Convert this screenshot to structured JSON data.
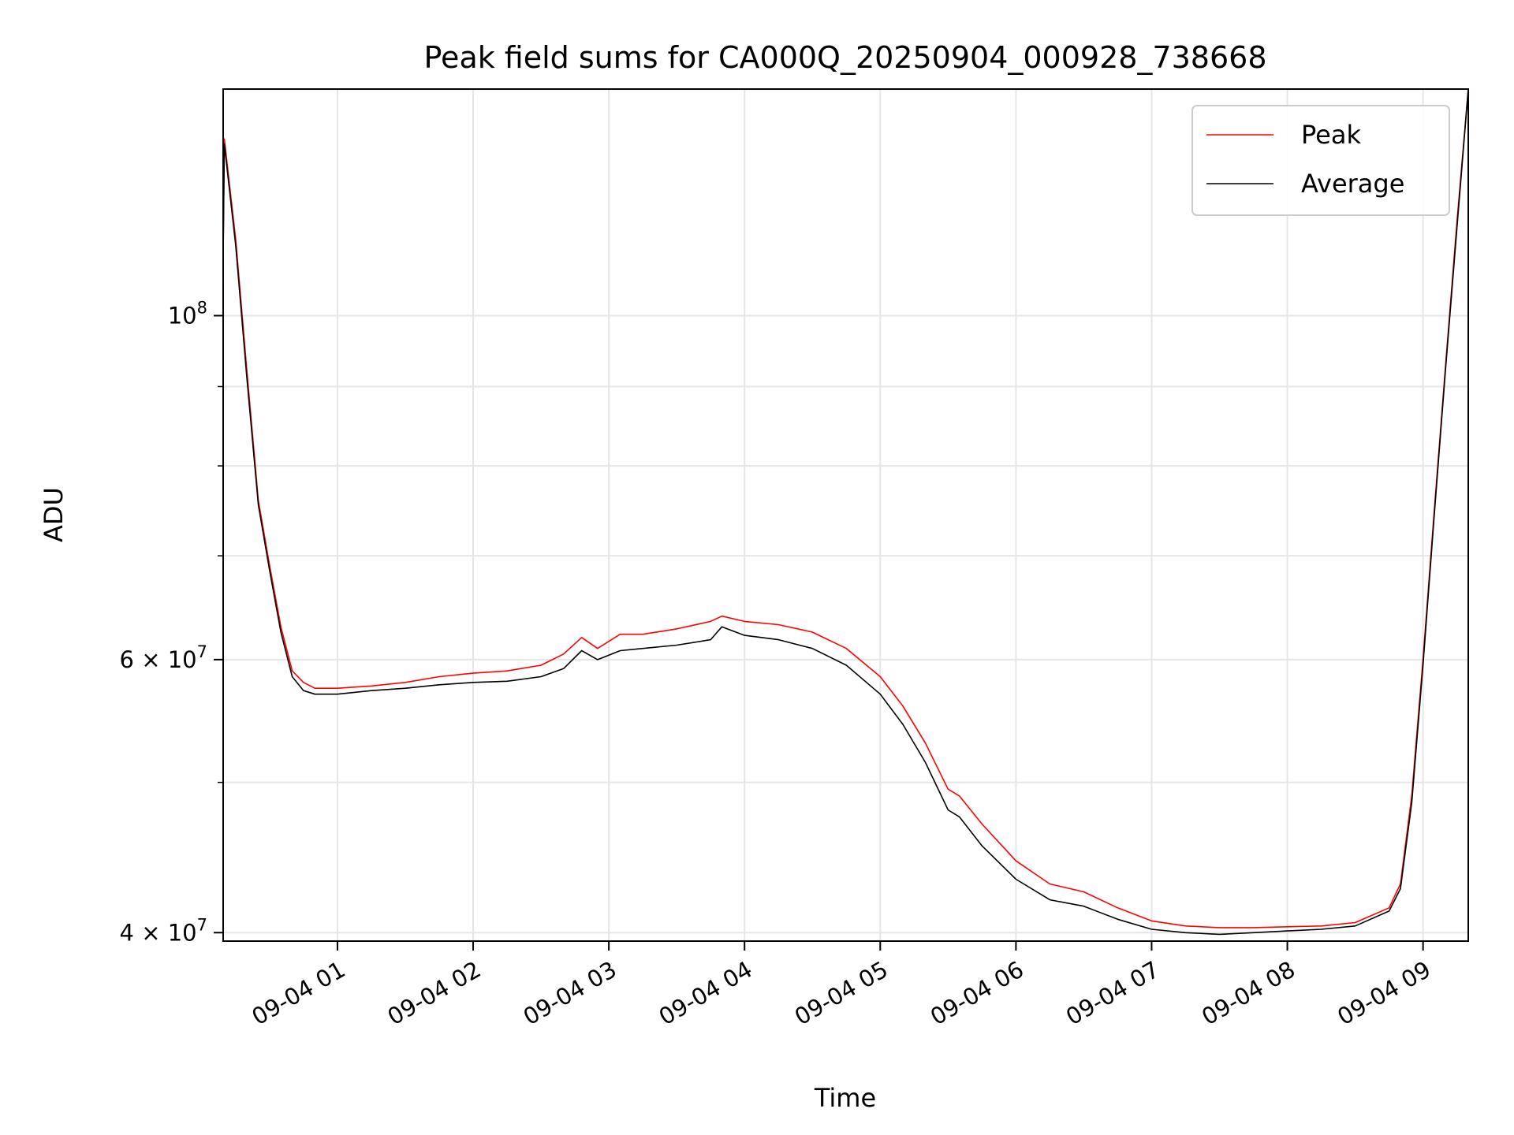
{
  "chart_data": {
    "type": "line",
    "title": "Peak field sums for CA000Q_20250904_000928_738668",
    "xlabel": "Time",
    "ylabel": "ADU",
    "x_axis": {
      "kind": "time",
      "range": [
        "2025-09-04 00:09:28",
        "2025-09-04 09:20:00"
      ],
      "ticks": [
        {
          "value": "2025-09-04 01:00",
          "label": "09-04 01"
        },
        {
          "value": "2025-09-04 02:00",
          "label": "09-04 02"
        },
        {
          "value": "2025-09-04 03:00",
          "label": "09-04 03"
        },
        {
          "value": "2025-09-04 04:00",
          "label": "09-04 04"
        },
        {
          "value": "2025-09-04 05:00",
          "label": "09-04 05"
        },
        {
          "value": "2025-09-04 06:00",
          "label": "09-04 06"
        },
        {
          "value": "2025-09-04 07:00",
          "label": "09-04 07"
        },
        {
          "value": "2025-09-04 08:00",
          "label": "09-04 08"
        },
        {
          "value": "2025-09-04 09:00",
          "label": "09-04 09"
        }
      ]
    },
    "y_axis": {
      "scale": "log",
      "range": [
        39500000,
        140000000
      ],
      "ticks": [
        {
          "value": 100000000,
          "base": "10",
          "exp": "8"
        },
        {
          "value": 60000000,
          "base": "6 × 10",
          "exp": "7"
        },
        {
          "value": 40000000,
          "base": "4 × 10",
          "exp": "7"
        }
      ],
      "minor_gridlines": [
        50000000,
        70000000,
        80000000,
        90000000
      ]
    },
    "grid": true,
    "legend": {
      "placement": "upper right"
    },
    "series": [
      {
        "name": "Peak",
        "color": "#ff0000",
        "x": [
          "2025-09-04 00:09:28",
          "2025-09-04 00:10",
          "2025-09-04 00:15",
          "2025-09-04 00:20",
          "2025-09-04 00:25",
          "2025-09-04 00:30",
          "2025-09-04 00:35",
          "2025-09-04 00:40",
          "2025-09-04 00:45",
          "2025-09-04 00:50",
          "2025-09-04 01:00",
          "2025-09-04 01:15",
          "2025-09-04 01:30",
          "2025-09-04 01:45",
          "2025-09-04 02:00",
          "2025-09-04 02:15",
          "2025-09-04 02:30",
          "2025-09-04 02:40",
          "2025-09-04 02:48",
          "2025-09-04 02:55",
          "2025-09-04 03:05",
          "2025-09-04 03:15",
          "2025-09-04 03:30",
          "2025-09-04 03:45",
          "2025-09-04 03:50",
          "2025-09-04 04:00",
          "2025-09-04 04:15",
          "2025-09-04 04:30",
          "2025-09-04 04:45",
          "2025-09-04 05:00",
          "2025-09-04 05:10",
          "2025-09-04 05:20",
          "2025-09-04 05:30",
          "2025-09-04 05:35",
          "2025-09-04 05:45",
          "2025-09-04 06:00",
          "2025-09-04 06:15",
          "2025-09-04 06:30",
          "2025-09-04 06:45",
          "2025-09-04 07:00",
          "2025-09-04 07:15",
          "2025-09-04 07:30",
          "2025-09-04 07:45",
          "2025-09-04 08:00",
          "2025-09-04 08:15",
          "2025-09-04 08:30",
          "2025-09-04 08:45",
          "2025-09-04 08:50",
          "2025-09-04 08:55",
          "2025-09-04 09:00",
          "2025-09-04 09:05",
          "2025-09-04 09:10",
          "2025-09-04 09:15",
          "2025-09-04 09:20"
        ],
        "y": [
          110000000,
          130000000,
          112000000,
          92000000,
          76000000,
          69000000,
          63000000,
          59000000,
          58000000,
          57500000,
          57500000,
          57700000,
          58000000,
          58500000,
          58800000,
          59000000,
          59500000,
          60500000,
          62000000,
          61000000,
          62300000,
          62300000,
          62800000,
          63500000,
          64000000,
          63500000,
          63200000,
          62500000,
          61000000,
          58500000,
          56000000,
          53000000,
          49500000,
          49000000,
          47000000,
          44500000,
          43000000,
          42500000,
          41500000,
          40700000,
          40400000,
          40300000,
          40300000,
          40350000,
          40400000,
          40600000,
          41500000,
          43000000,
          49000000,
          60000000,
          75000000,
          93000000,
          115000000,
          140000000
        ]
      },
      {
        "name": "Average",
        "color": "#000000",
        "x": [
          "2025-09-04 00:09:28",
          "2025-09-04 00:10",
          "2025-09-04 00:15",
          "2025-09-04 00:20",
          "2025-09-04 00:25",
          "2025-09-04 00:30",
          "2025-09-04 00:35",
          "2025-09-04 00:40",
          "2025-09-04 00:45",
          "2025-09-04 00:50",
          "2025-09-04 01:00",
          "2025-09-04 01:15",
          "2025-09-04 01:30",
          "2025-09-04 01:45",
          "2025-09-04 02:00",
          "2025-09-04 02:15",
          "2025-09-04 02:30",
          "2025-09-04 02:40",
          "2025-09-04 02:48",
          "2025-09-04 02:55",
          "2025-09-04 03:05",
          "2025-09-04 03:15",
          "2025-09-04 03:30",
          "2025-09-04 03:45",
          "2025-09-04 03:50",
          "2025-09-04 04:00",
          "2025-09-04 04:15",
          "2025-09-04 04:30",
          "2025-09-04 04:45",
          "2025-09-04 05:00",
          "2025-09-04 05:10",
          "2025-09-04 05:20",
          "2025-09-04 05:30",
          "2025-09-04 05:35",
          "2025-09-04 05:45",
          "2025-09-04 06:00",
          "2025-09-04 06:15",
          "2025-09-04 06:30",
          "2025-09-04 06:45",
          "2025-09-04 07:00",
          "2025-09-04 07:15",
          "2025-09-04 07:30",
          "2025-09-04 07:45",
          "2025-09-04 08:00",
          "2025-09-04 08:15",
          "2025-09-04 08:30",
          "2025-09-04 08:45",
          "2025-09-04 08:50",
          "2025-09-04 08:55",
          "2025-09-04 09:00",
          "2025-09-04 09:05",
          "2025-09-04 09:10",
          "2025-09-04 09:15",
          "2025-09-04 09:20"
        ],
        "y": [
          109000000,
          129000000,
          111000000,
          91000000,
          75500000,
          68500000,
          62500000,
          58500000,
          57300000,
          57000000,
          57000000,
          57300000,
          57500000,
          57800000,
          58000000,
          58100000,
          58500000,
          59200000,
          60800000,
          60000000,
          60800000,
          61000000,
          61300000,
          61800000,
          63000000,
          62200000,
          61800000,
          61000000,
          59500000,
          57000000,
          54500000,
          51500000,
          48000000,
          47500000,
          45500000,
          43300000,
          42000000,
          41600000,
          40800000,
          40200000,
          40000000,
          39900000,
          40000000,
          40100000,
          40200000,
          40400000,
          41300000,
          42700000,
          48500000,
          59500000,
          74500000,
          92500000,
          114000000,
          140000000
        ]
      }
    ]
  }
}
